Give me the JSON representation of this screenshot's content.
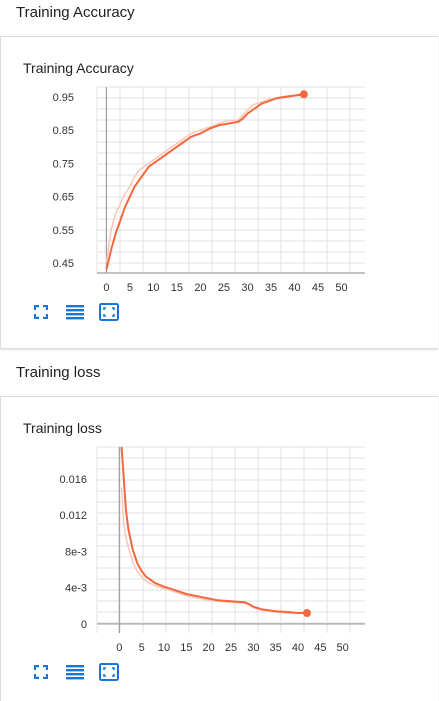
{
  "sections": [
    {
      "title": "Training Accuracy",
      "card_title": "Training Accuracy",
      "toolbar": [
        "fullscreen-icon",
        "data-table-icon",
        "fit-domain-icon"
      ]
    },
    {
      "title": "Training loss",
      "card_title": "Training loss",
      "toolbar": [
        "fullscreen-icon",
        "data-table-icon",
        "fit-domain-icon"
      ]
    }
  ],
  "colors": {
    "smoothed": "#f4673f",
    "raw": "#f8c8b8",
    "grid": "#e0e0e0",
    "axis": "#9e9e9e"
  },
  "chart_data": [
    {
      "type": "line",
      "title": "Training Accuracy",
      "xlim": [
        -2,
        55
      ],
      "ylim": [
        0.42,
        0.98
      ],
      "xticks": [
        0,
        5,
        10,
        15,
        20,
        25,
        30,
        35,
        40,
        45,
        50
      ],
      "yticks": [
        0.45,
        0.55,
        0.65,
        0.75,
        0.85,
        0.95
      ],
      "ytick_labels": [
        "0.45",
        "0.55",
        "0.65",
        "0.75",
        "0.85",
        "0.95"
      ],
      "series": [
        {
          "role": "smoothed",
          "x": [
            0,
            1,
            2,
            3,
            4,
            5,
            6,
            7,
            8,
            9,
            10,
            12,
            14,
            16,
            18,
            20,
            22,
            24,
            26,
            28,
            29,
            30,
            31,
            32,
            33,
            34,
            35,
            36,
            37,
            38,
            39,
            40,
            41,
            42
          ],
          "y": [
            0.43,
            0.49,
            0.54,
            0.58,
            0.62,
            0.65,
            0.68,
            0.7,
            0.72,
            0.74,
            0.75,
            0.77,
            0.79,
            0.81,
            0.83,
            0.84,
            0.855,
            0.865,
            0.87,
            0.875,
            0.885,
            0.9,
            0.91,
            0.92,
            0.93,
            0.935,
            0.94,
            0.945,
            0.948,
            0.95,
            0.952,
            0.954,
            0.956,
            0.958
          ]
        },
        {
          "role": "raw",
          "x": [
            0,
            1,
            2,
            3,
            4,
            5,
            6,
            7,
            8,
            9,
            10,
            12,
            14,
            16,
            18,
            20,
            22,
            24,
            26,
            28,
            29,
            30,
            31,
            32,
            33,
            34,
            35,
            36,
            37,
            38,
            39,
            40,
            41,
            42
          ],
          "y": [
            0.45,
            0.55,
            0.6,
            0.63,
            0.66,
            0.68,
            0.71,
            0.73,
            0.74,
            0.75,
            0.76,
            0.78,
            0.8,
            0.82,
            0.84,
            0.85,
            0.86,
            0.87,
            0.88,
            0.88,
            0.895,
            0.91,
            0.925,
            0.93,
            0.935,
            0.94,
            0.945,
            0.947,
            0.95,
            0.952,
            0.954,
            0.955,
            0.957,
            0.958
          ]
        }
      ]
    },
    {
      "type": "line",
      "title": "Training loss",
      "xlim": [
        -5,
        55
      ],
      "ylim": [
        -0.001,
        0.0195
      ],
      "xticks": [
        0,
        5,
        10,
        15,
        20,
        25,
        30,
        35,
        40,
        45,
        50
      ],
      "yticks": [
        0,
        0.004,
        0.008,
        0.012,
        0.016
      ],
      "ytick_labels": [
        "0",
        "4e-3",
        "8e-3",
        "0.012",
        "0.016"
      ],
      "series": [
        {
          "role": "smoothed",
          "x": [
            0.5,
            1,
            1.5,
            2,
            3,
            4,
            5,
            6,
            8,
            10,
            12,
            15,
            18,
            20,
            22,
            25,
            28,
            29,
            30,
            32,
            35,
            38,
            40,
            42
          ],
          "y": [
            0.0195,
            0.016,
            0.0125,
            0.0105,
            0.0082,
            0.0067,
            0.0058,
            0.0052,
            0.0045,
            0.0041,
            0.0038,
            0.0033,
            0.003,
            0.0028,
            0.0026,
            0.0025,
            0.0024,
            0.0022,
            0.0019,
            0.0016,
            0.0014,
            0.0013,
            0.0012,
            0.0012
          ]
        },
        {
          "role": "raw",
          "x": [
            0.5,
            1,
            1.5,
            2,
            3,
            4,
            5,
            6,
            8,
            10,
            12,
            15,
            18,
            20,
            22,
            25,
            28,
            29,
            30,
            32,
            35,
            38,
            40,
            42
          ],
          "y": [
            0.015,
            0.011,
            0.0095,
            0.0085,
            0.0068,
            0.0058,
            0.0052,
            0.0047,
            0.0042,
            0.0039,
            0.0036,
            0.0031,
            0.0028,
            0.0026,
            0.0025,
            0.0024,
            0.0023,
            0.0021,
            0.0018,
            0.0015,
            0.0013,
            0.0012,
            0.0012,
            0.0012
          ]
        }
      ]
    }
  ]
}
